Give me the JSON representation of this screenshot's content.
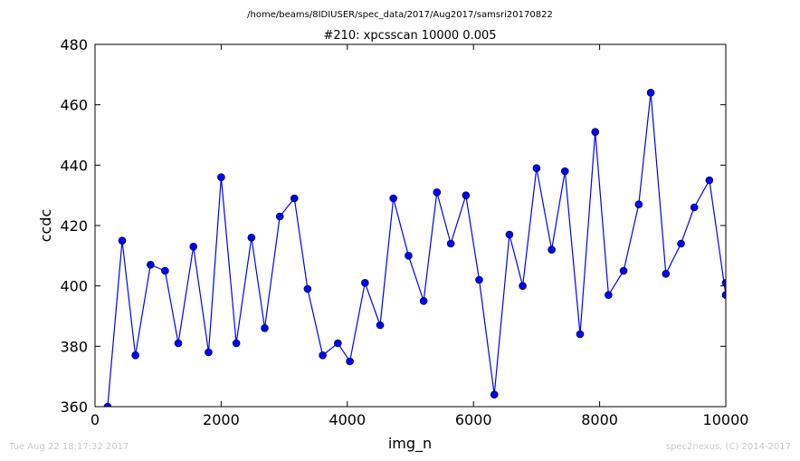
{
  "chart_data": {
    "type": "line",
    "suptitle": "/home/beams/8IDIUSER/spec_data/2017/Aug2017/samsri20170822",
    "title": "#210: xpcsscan 10000 0.005",
    "xlabel": "img_n",
    "ylabel": "ccdc",
    "xlim": [
      0,
      10000
    ],
    "ylim": [
      360,
      480
    ],
    "xticks": [
      0,
      2000,
      4000,
      6000,
      8000,
      10000
    ],
    "yticks": [
      360,
      380,
      400,
      420,
      440,
      460,
      480
    ],
    "xtick_labels": [
      "0",
      "2000",
      "4000",
      "6000",
      "8000",
      "10000"
    ],
    "ytick_labels": [
      "360",
      "380",
      "400",
      "420",
      "440",
      "460",
      "480"
    ],
    "grid": false,
    "series": [
      {
        "color": "#0000ff",
        "marker": "circle",
        "x": [
          200,
          430,
          640,
          880,
          1110,
          1320,
          1560,
          1800,
          2000,
          2240,
          2480,
          2690,
          2930,
          3160,
          3370,
          3610,
          3850,
          4040,
          4280,
          4520,
          4730,
          4970,
          5210,
          5420,
          5640,
          5880,
          6090,
          6330,
          6570,
          6780,
          7000,
          7240,
          7450,
          7690,
          7930,
          8140,
          8380,
          8620,
          8810,
          9050,
          9290,
          9500,
          9740,
          10000,
          10000
        ],
        "y": [
          360,
          415,
          377,
          407,
          405,
          381,
          413,
          378,
          436,
          381,
          416,
          386,
          423,
          429,
          399,
          377,
          381,
          375,
          401,
          387,
          429,
          410,
          395,
          431,
          414,
          430,
          402,
          364,
          417,
          400,
          439,
          412,
          438,
          384,
          451,
          397,
          405,
          427,
          464,
          404,
          414,
          426,
          435,
          397,
          401
        ]
      }
    ]
  },
  "footer": {
    "left": "Tue Aug 22 18:17:32 2017",
    "right": "spec2nexus, (C) 2014-2017"
  }
}
